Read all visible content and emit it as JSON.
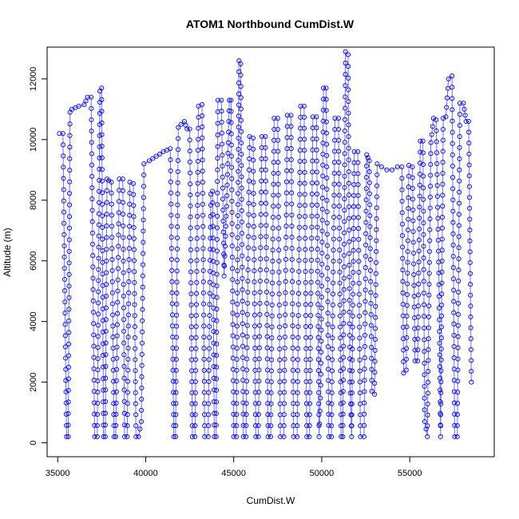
{
  "chart_data": {
    "type": "scatter",
    "title": "ATOM1 Northbound CumDist.W",
    "xlabel": "CumDist.W",
    "ylabel": "Altitude (m)",
    "xlim": [
      34400,
      59800
    ],
    "ylim": [
      -460,
      13050
    ],
    "xticks": [
      35000,
      40000,
      45000,
      50000,
      55000
    ],
    "yticks": [
      0,
      2000,
      4000,
      6000,
      8000,
      10000,
      12000
    ],
    "grid": false,
    "point_color": "#0000ff",
    "line_color": "#6f6fff",
    "marker": "open circle",
    "series": [
      {
        "values_note": "Approximate profile vertices (CumDist.W, Altitude m) traced from the plot; points are sampled along these segments",
        "points": [
          [
            35100,
            10200
          ],
          [
            35300,
            10200
          ],
          [
            35500,
            200
          ],
          [
            35600,
            200
          ],
          [
            35700,
            10900
          ],
          [
            35800,
            11000
          ],
          [
            36200,
            11100
          ],
          [
            36500,
            11150
          ],
          [
            36700,
            11400
          ],
          [
            36900,
            11400
          ],
          [
            37100,
            200
          ],
          [
            37250,
            200
          ],
          [
            37400,
            11600
          ],
          [
            37500,
            11700
          ],
          [
            37600,
            200
          ],
          [
            37700,
            200
          ],
          [
            37800,
            8700
          ],
          [
            37900,
            8650
          ],
          [
            38050,
            8600
          ],
          [
            38200,
            200
          ],
          [
            38300,
            200
          ],
          [
            38500,
            8700
          ],
          [
            38700,
            8700
          ],
          [
            38800,
            200
          ],
          [
            38950,
            200
          ],
          [
            39100,
            8600
          ],
          [
            39300,
            8550
          ],
          [
            39450,
            200
          ],
          [
            39600,
            200
          ],
          [
            39750,
            700
          ],
          [
            39900,
            9200
          ],
          [
            40200,
            9300
          ],
          [
            40600,
            9450
          ],
          [
            41000,
            9600
          ],
          [
            41400,
            9700
          ],
          [
            41600,
            200
          ],
          [
            41700,
            200
          ],
          [
            41850,
            10400
          ],
          [
            42000,
            10500
          ],
          [
            42200,
            10600
          ],
          [
            42350,
            10350
          ],
          [
            42500,
            10350
          ],
          [
            42650,
            200
          ],
          [
            42800,
            200
          ],
          [
            43000,
            11100
          ],
          [
            43200,
            11150
          ],
          [
            43350,
            200
          ],
          [
            43550,
            200
          ],
          [
            43700,
            8200
          ],
          [
            43800,
            8300
          ],
          [
            43900,
            200
          ],
          [
            44000,
            200
          ],
          [
            44100,
            11300
          ],
          [
            44300,
            11300
          ],
          [
            44450,
            5500
          ],
          [
            44600,
            7800
          ],
          [
            44750,
            11300
          ],
          [
            44850,
            11300
          ],
          [
            45000,
            200
          ],
          [
            45150,
            200
          ],
          [
            45300,
            12600
          ],
          [
            45400,
            12500
          ],
          [
            45550,
            200
          ],
          [
            45700,
            200
          ],
          [
            45900,
            10100
          ],
          [
            46100,
            10050
          ],
          [
            46250,
            200
          ],
          [
            46400,
            200
          ],
          [
            46600,
            10100
          ],
          [
            46800,
            10100
          ],
          [
            46950,
            200
          ],
          [
            47100,
            200
          ],
          [
            47300,
            10700
          ],
          [
            47500,
            10700
          ],
          [
            47650,
            200
          ],
          [
            47850,
            200
          ],
          [
            48050,
            10800
          ],
          [
            48250,
            10800
          ],
          [
            48400,
            200
          ],
          [
            48600,
            200
          ],
          [
            48800,
            11100
          ],
          [
            49000,
            11100
          ],
          [
            49150,
            200
          ],
          [
            49300,
            200
          ],
          [
            49500,
            10750
          ],
          [
            49700,
            10750
          ],
          [
            49850,
            200
          ],
          [
            49950,
            1900
          ],
          [
            50100,
            11700
          ],
          [
            50250,
            11700
          ],
          [
            50400,
            200
          ],
          [
            50550,
            200
          ],
          [
            50750,
            10700
          ],
          [
            50950,
            10700
          ],
          [
            51100,
            200
          ],
          [
            51200,
            200
          ],
          [
            51350,
            12900
          ],
          [
            51500,
            12800
          ],
          [
            51600,
            2000
          ],
          [
            51700,
            200
          ],
          [
            51850,
            9600
          ],
          [
            52050,
            9600
          ],
          [
            52200,
            200
          ],
          [
            52400,
            200
          ],
          [
            52550,
            9500
          ],
          [
            52700,
            9300
          ],
          [
            52850,
            1700
          ],
          [
            53000,
            1600
          ],
          [
            53150,
            9200
          ],
          [
            53400,
            9100
          ],
          [
            53700,
            9000
          ],
          [
            54000,
            9000
          ],
          [
            54300,
            9100
          ],
          [
            54550,
            9100
          ],
          [
            54650,
            2300
          ],
          [
            54800,
            2400
          ],
          [
            54950,
            9150
          ],
          [
            55150,
            9100
          ],
          [
            55300,
            2700
          ],
          [
            55450,
            2700
          ],
          [
            55600,
            9950
          ],
          [
            55750,
            9950
          ],
          [
            55850,
            700
          ],
          [
            56000,
            200
          ],
          [
            56200,
            9900
          ],
          [
            56350,
            10700
          ],
          [
            56500,
            10650
          ],
          [
            56650,
            5600
          ],
          [
            56750,
            200
          ],
          [
            56900,
            10700
          ],
          [
            57050,
            10750
          ],
          [
            57200,
            12000
          ],
          [
            57400,
            12100
          ],
          [
            57550,
            200
          ],
          [
            57700,
            200
          ],
          [
            57850,
            11200
          ],
          [
            58050,
            11200
          ],
          [
            58200,
            10600
          ],
          [
            58350,
            10600
          ],
          [
            58500,
            2000
          ]
        ]
      }
    ]
  }
}
